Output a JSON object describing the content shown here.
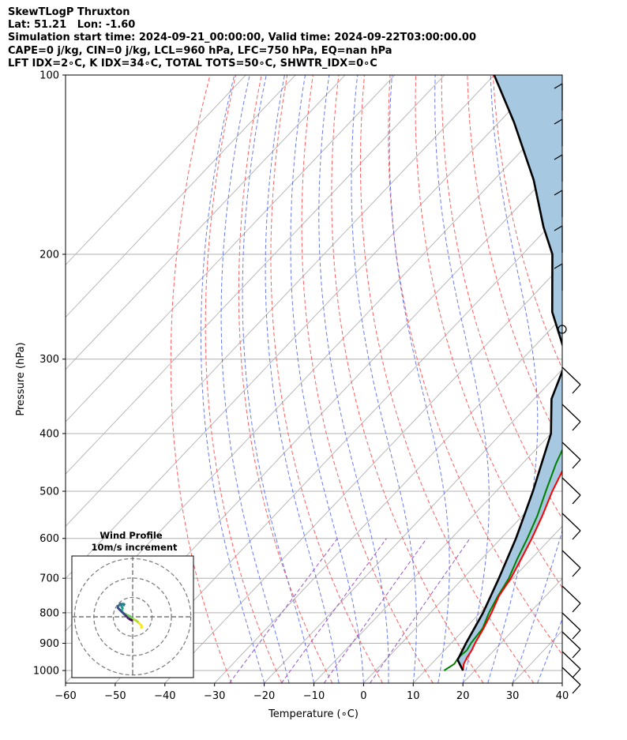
{
  "header": {
    "line1": "SkewTLogP Thruxton",
    "line2": "Lat: 51.21   Lon: -1.60",
    "line3": "Simulation start time: 2024-09-21_00:00:00, Valid time: 2024-09-22T03:00:00.00",
    "line4": "CAPE=0 j/kg, CIN=0 j/kg, LCL=960 hPa, LFC=750 hPa, EQ=nan hPa",
    "line5": "LFT IDX=2∘C, K IDX=34∘C, TOTAL TOTS=50∘C, SHWTR_IDX=0∘C"
  },
  "chart_data": [
    {
      "type": "line",
      "subtype": "skew-t log-p",
      "xlabel": "Temperature (∘C)",
      "ylabel": "Pressure (hPa)",
      "xlim": [
        -60,
        40
      ],
      "ylim": [
        1050,
        100
      ],
      "y_scale": "log",
      "grid": true,
      "x_ticks": [
        -60,
        -50,
        -40,
        -30,
        -20,
        -10,
        0,
        10,
        20,
        30,
        40
      ],
      "y_ticks": [
        100,
        200,
        300,
        400,
        500,
        600,
        700,
        800,
        900,
        1000
      ],
      "colors": {
        "temperature": "#ff0000",
        "dewpoint": "#008000",
        "parcel": "#000000",
        "shade": "#a6c8e0",
        "dry_adiabat": "#ff6060",
        "moist_adiabat": "#5a6ef0",
        "mixing_ratio": "#9a55c8",
        "isotherm": "#b0b0b0",
        "isobar": "#b0b0b0"
      },
      "series": [
        {
          "role": "temperature",
          "color": "#ff0000",
          "points": [
            [
              17.6,
              1000
            ],
            [
              16.5,
              975
            ],
            [
              15.9,
              950
            ],
            [
              15.5,
              925
            ],
            [
              14.8,
              900
            ],
            [
              13.7,
              850
            ],
            [
              12.3,
              800
            ],
            [
              10.6,
              750
            ],
            [
              9.6,
              700
            ],
            [
              8.0,
              650
            ],
            [
              6.2,
              600
            ],
            [
              4.0,
              550
            ],
            [
              1.3,
              500
            ],
            [
              -1.2,
              450
            ],
            [
              -4.0,
              400
            ],
            [
              -7.5,
              350
            ],
            [
              -11.2,
              300
            ],
            [
              -14.0,
              270
            ],
            [
              -14.8,
              250
            ],
            [
              -15.2,
              240
            ],
            [
              -15.0,
              230
            ],
            [
              -16.0,
              220
            ],
            [
              -18.0,
              200
            ],
            [
              -23.0,
              185
            ],
            [
              -25.5,
              170
            ],
            [
              -29.0,
              160
            ],
            [
              -35.0,
              140
            ],
            [
              -42.0,
              120
            ],
            [
              -50.0,
              100
            ]
          ]
        },
        {
          "role": "dewpoint",
          "color": "#008000",
          "points": [
            [
              13.8,
              1000
            ],
            [
              14.6,
              975
            ],
            [
              14.2,
              950
            ],
            [
              14.5,
              925
            ],
            [
              14.0,
              900
            ],
            [
              13.5,
              850
            ],
            [
              11.8,
              800
            ],
            [
              10.4,
              750
            ],
            [
              9.2,
              700
            ],
            [
              7.2,
              650
            ],
            [
              5.3,
              600
            ],
            [
              3.0,
              550
            ],
            [
              0.0,
              500
            ],
            [
              -3.2,
              450
            ],
            [
              -6.2,
              400
            ],
            [
              -10.5,
              350
            ],
            [
              -14.5,
              300
            ],
            [
              -16.5,
              270
            ],
            [
              -17.0,
              250
            ],
            [
              -17.5,
              230
            ],
            [
              -19.0,
              210
            ],
            [
              -20.0,
              200
            ],
            [
              -23.0,
              190
            ],
            [
              -29.0,
              180
            ],
            [
              -35.0,
              160
            ],
            [
              -44.0,
              140
            ],
            [
              -55.0,
              120
            ],
            [
              -66.0,
              100
            ]
          ]
        },
        {
          "role": "parcel",
          "color": "#000000",
          "points": [
            [
              17.6,
              1000
            ],
            [
              14.5,
              960
            ],
            [
              13.0,
              900
            ],
            [
              10.6,
              800
            ],
            [
              7.2,
              700
            ],
            [
              3.0,
              600
            ],
            [
              -2.6,
              500
            ],
            [
              -10.0,
              400
            ],
            [
              -16.5,
              350
            ],
            [
              -21.0,
              300
            ],
            [
              -33.0,
              250
            ],
            [
              -44.0,
              200
            ],
            [
              -51.0,
              180
            ],
            [
              -62.0,
              150
            ],
            [
              -77.0,
              120
            ],
            [
              -90.0,
              100
            ]
          ]
        }
      ]
    },
    {
      "type": "line",
      "subtype": "hodograph",
      "title": "Wind Profile",
      "subtitle": "10m/s increment",
      "x": [
        4,
        5,
        4,
        3,
        2,
        0,
        -1,
        -3,
        -5,
        -6,
        -5,
        -6,
        -5,
        -4,
        -5,
        -6,
        -7,
        -8,
        -6,
        -5,
        -4,
        -3,
        -2,
        0
      ],
      "y": [
        -6,
        -5,
        -4,
        -3,
        -2,
        -1,
        0,
        1,
        2,
        3,
        4,
        6,
        7,
        6,
        6,
        7,
        6,
        5,
        3,
        2,
        1,
        0,
        -1,
        -2
      ]
    }
  ],
  "icons": {
    "hodograph_markers": "circle",
    "wind_barbs": "barb-glyph"
  }
}
